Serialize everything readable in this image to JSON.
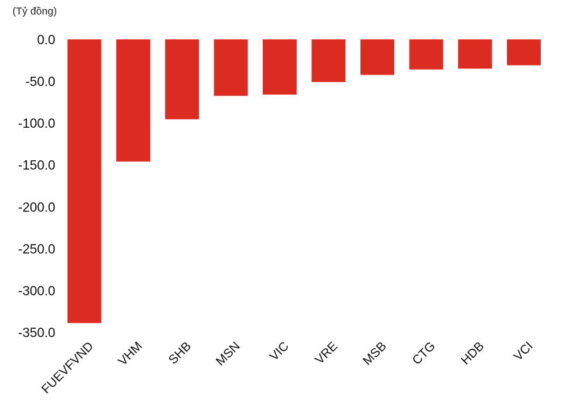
{
  "unit_label": "(Tỷ đồng)",
  "colors": {
    "bar": "#DC2C21",
    "text": "#111111"
  },
  "chart_data": {
    "type": "bar",
    "title": "",
    "xlabel": "",
    "ylabel": "(Tỷ đồng)",
    "categories": [
      "FUEVFVND",
      "VHM",
      "SHB",
      "MSN",
      "VIC",
      "VRE",
      "MSB",
      "CTG",
      "HDB",
      "VCI"
    ],
    "values": [
      -339.0,
      -146.0,
      -95.5,
      -67.5,
      -66.0,
      -51.0,
      -42.5,
      -36.0,
      -35.0,
      -31.0
    ],
    "ylim": [
      -350,
      0
    ],
    "yticks": [
      0,
      -50,
      -100,
      -150,
      -200,
      -250,
      -300,
      -350
    ],
    "ytick_labels": [
      "0.0",
      "-50.0",
      "-100.0",
      "-150.0",
      "-200.0",
      "-250.0",
      "-300.0",
      "-350.0"
    ],
    "grid": false,
    "legend": false
  }
}
